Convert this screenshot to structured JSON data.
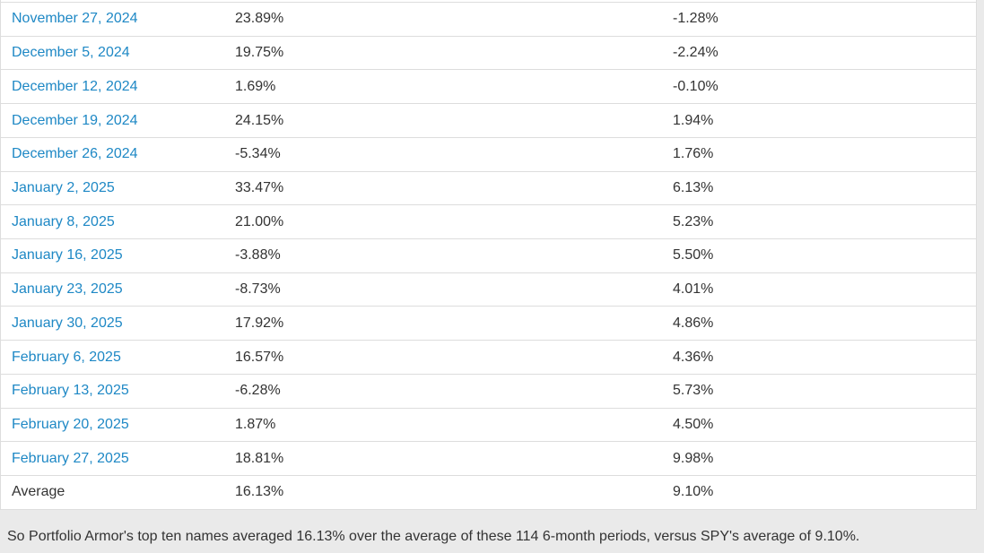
{
  "colors": {
    "page_background": "#eaeaea",
    "table_background": "#ffffff",
    "border": "#dddddd",
    "link": "#1e88c5",
    "text": "#333333"
  },
  "table": {
    "rows": [
      {
        "date": "November 27, 2024",
        "link": true,
        "portfolio": "23.89%",
        "spy": "-1.28%"
      },
      {
        "date": "December 5, 2024",
        "link": true,
        "portfolio": "19.75%",
        "spy": "-2.24%"
      },
      {
        "date": "December 12, 2024",
        "link": true,
        "portfolio": "1.69%",
        "spy": "-0.10%"
      },
      {
        "date": "December 19, 2024",
        "link": true,
        "portfolio": "24.15%",
        "spy": "1.94%"
      },
      {
        "date": "December 26, 2024",
        "link": true,
        "portfolio": "-5.34%",
        "spy": "1.76%"
      },
      {
        "date": "January 2, 2025",
        "link": true,
        "portfolio": "33.47%",
        "spy": "6.13%"
      },
      {
        "date": "January 8, 2025",
        "link": true,
        "portfolio": "21.00%",
        "spy": "5.23%"
      },
      {
        "date": "January 16, 2025",
        "link": true,
        "portfolio": "-3.88%",
        "spy": "5.50%"
      },
      {
        "date": "January 23, 2025",
        "link": true,
        "portfolio": "-8.73%",
        "spy": "4.01%"
      },
      {
        "date": "January 30, 2025",
        "link": true,
        "portfolio": "17.92%",
        "spy": "4.86%"
      },
      {
        "date": "February 6, 2025",
        "link": true,
        "portfolio": "16.57%",
        "spy": "4.36%"
      },
      {
        "date": "February 13, 2025",
        "link": true,
        "portfolio": "-6.28%",
        "spy": "5.73%"
      },
      {
        "date": "February 20, 2025",
        "link": true,
        "portfolio": "1.87%",
        "spy": "4.50%"
      },
      {
        "date": "February 27, 2025",
        "link": true,
        "portfolio": "18.81%",
        "spy": "9.98%"
      },
      {
        "date": "Average",
        "link": false,
        "portfolio": "16.13%",
        "spy": "9.10%"
      }
    ]
  },
  "footer": {
    "text": "So Portfolio Armor's top ten names averaged 16.13% over the average of these 114 6-month periods, versus SPY's average of 9.10%."
  }
}
